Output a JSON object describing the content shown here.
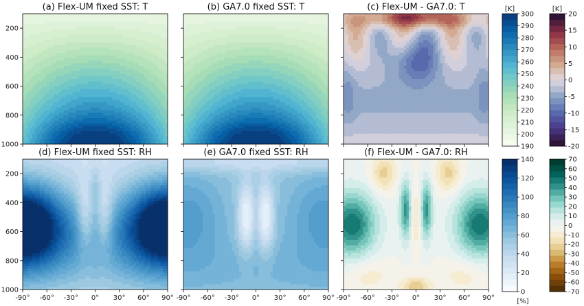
{
  "figure": {
    "units": {
      "temperature": "[K]",
      "difference": "[K]",
      "humidity": "[%]"
    }
  },
  "chart_data": [
    {
      "type": "heatmap",
      "id": "a",
      "title": "(a) Flex-UM fixed SST: T",
      "variable": "T",
      "colormap": "GnBu",
      "x": {
        "ticks": [
          -90,
          -60,
          -30,
          0,
          30,
          60,
          90
        ],
        "tick_labels": [
          "-90°",
          "-60°",
          "-30°",
          "0°",
          "30°",
          "60°",
          "90°"
        ],
        "range": [
          -90,
          90
        ],
        "shown": false
      },
      "y": {
        "ticks": [
          200,
          400,
          600,
          800,
          1000
        ],
        "tick_labels": [
          "200",
          "400",
          "600",
          "800",
          "1000"
        ],
        "range": [
          100,
          1000
        ],
        "inverted": true,
        "shown": true
      },
      "colorbar": "cb_T"
    },
    {
      "type": "heatmap",
      "id": "b",
      "title": "(b) GA7.0 fixed SST: T",
      "variable": "T",
      "colormap": "GnBu",
      "x": {
        "ticks": [
          -90,
          -60,
          -30,
          0,
          30,
          60,
          90
        ],
        "tick_labels": [
          "-90°",
          "-60°",
          "-30°",
          "0°",
          "30°",
          "60°",
          "90°"
        ],
        "range": [
          -90,
          90
        ],
        "shown": false
      },
      "y": {
        "ticks": [
          200,
          400,
          600,
          800,
          1000
        ],
        "range": [
          100,
          1000
        ],
        "inverted": true,
        "shown": false
      },
      "colorbar": "cb_T"
    },
    {
      "type": "heatmap",
      "id": "c",
      "title": "(c) Flex-UM - GA7.0: T",
      "variable": "dT",
      "colormap": "twilight_shifted",
      "x": {
        "ticks": [
          -90,
          -60,
          -30,
          0,
          30,
          60,
          90
        ],
        "tick_labels": [
          "-90°",
          "-60°",
          "-30°",
          "0°",
          "30°",
          "60°",
          "90°"
        ],
        "range": [
          -90,
          90
        ],
        "shown": false
      },
      "y": {
        "ticks": [
          200,
          400,
          600,
          800,
          1000
        ],
        "range": [
          100,
          1000
        ],
        "inverted": true,
        "shown": false
      },
      "colorbar": "cb_dT"
    },
    {
      "type": "heatmap",
      "id": "d",
      "title": "(d) Flex-UM fixed SST: RH",
      "variable": "RH",
      "colormap": "Blues",
      "x": {
        "ticks": [
          -90,
          -60,
          -30,
          0,
          30,
          60,
          90
        ],
        "tick_labels": [
          "-90°",
          "-60°",
          "-30°",
          "0°",
          "30°",
          "60°",
          "90°"
        ],
        "range": [
          -90,
          90
        ],
        "shown": true
      },
      "y": {
        "ticks": [
          200,
          400,
          600,
          800,
          1000
        ],
        "tick_labels": [
          "200",
          "400",
          "600",
          "800",
          "1000"
        ],
        "range": [
          100,
          1000
        ],
        "inverted": true,
        "shown": true
      },
      "colorbar": "cb_RH"
    },
    {
      "type": "heatmap",
      "id": "e",
      "title": "(e) GA7.0 fixed SST: RH",
      "variable": "RH",
      "colormap": "Blues",
      "x": {
        "ticks": [
          -90,
          -60,
          -30,
          0,
          30,
          60,
          90
        ],
        "tick_labels": [
          "-90°",
          "-60°",
          "-30°",
          "0°",
          "30°",
          "60°",
          "90°"
        ],
        "range": [
          -90,
          90
        ],
        "shown": true
      },
      "y": {
        "ticks": [
          200,
          400,
          600,
          800,
          1000
        ],
        "range": [
          100,
          1000
        ],
        "inverted": true,
        "shown": false
      },
      "colorbar": "cb_RH"
    },
    {
      "type": "heatmap",
      "id": "f",
      "title": "(f) Flex-UM - GA7.0: RH",
      "variable": "dRH",
      "colormap": "BrBG",
      "x": {
        "ticks": [
          -90,
          -60,
          -30,
          0,
          30,
          60,
          90
        ],
        "tick_labels": [
          "-90°",
          "-60°",
          "-30°",
          "0°",
          "30°",
          "60°",
          "90°"
        ],
        "range": [
          -90,
          90
        ],
        "shown": true
      },
      "y": {
        "ticks": [
          200,
          400,
          600,
          800,
          1000
        ],
        "range": [
          100,
          1000
        ],
        "inverted": true,
        "shown": false
      },
      "colorbar": "cb_dRH"
    }
  ],
  "colorbars": {
    "cb_T": {
      "unit": "[K]",
      "range": [
        190,
        300
      ],
      "ticks": [
        190,
        200,
        210,
        220,
        230,
        240,
        250,
        260,
        270,
        280,
        290,
        300
      ],
      "tick_labels": [
        "190",
        "200",
        "210",
        "220",
        "230",
        "240",
        "250",
        "260",
        "270",
        "280",
        "290",
        "300"
      ]
    },
    "cb_dT": {
      "unit": "[K]",
      "range": [
        -20,
        20
      ],
      "ticks": [
        -20,
        -15,
        -10,
        -5,
        0,
        5,
        10,
        15,
        20
      ],
      "tick_labels": [
        "-20",
        "-15",
        "-10",
        "-5",
        "0",
        "5",
        "10",
        "15",
        "20"
      ]
    },
    "cb_RH": {
      "unit": "[%]",
      "range": [
        0,
        140
      ],
      "ticks": [
        0,
        20,
        40,
        60,
        80,
        100,
        120,
        140
      ],
      "tick_labels": [
        "0",
        "20",
        "40",
        "60",
        "80",
        "100",
        "120",
        "140"
      ]
    },
    "cb_dRH": {
      "unit": "",
      "range": [
        -70,
        70
      ],
      "ticks": [
        -70,
        -60,
        -50,
        -40,
        -30,
        -20,
        -10,
        0,
        10,
        20,
        30,
        40,
        50,
        60,
        70
      ],
      "tick_labels": [
        "-70",
        "-60",
        "-50",
        "-40",
        "-30",
        "-20",
        "-10",
        "0",
        "10",
        "20",
        "30",
        "40",
        "50",
        "60",
        "70"
      ]
    }
  },
  "colors": {
    "GnBu": [
      "#f7fcf0",
      "#e0f3db",
      "#ccebc5",
      "#a8ddb5",
      "#7bccc4",
      "#4eb3d3",
      "#2b8cbe",
      "#0868ac",
      "#084081"
    ],
    "Blues": [
      "#f7fbff",
      "#deebf7",
      "#c6dbef",
      "#9ecae1",
      "#6baed6",
      "#4292c6",
      "#2171b5",
      "#08519c",
      "#08306b"
    ],
    "BrBG": [
      "#543005",
      "#8c510a",
      "#bf812d",
      "#dfc27d",
      "#f6e8c3",
      "#f5f5f5",
      "#c7eae5",
      "#80cdc1",
      "#35978f",
      "#01665e",
      "#003c30"
    ],
    "twilight_shifted": [
      "#2f1436",
      "#4a3a8c",
      "#5a6eb0",
      "#8fa6c6",
      "#e2d9e2",
      "#d2a98e",
      "#b86b5c",
      "#8a2e45",
      "#2f1436"
    ]
  }
}
